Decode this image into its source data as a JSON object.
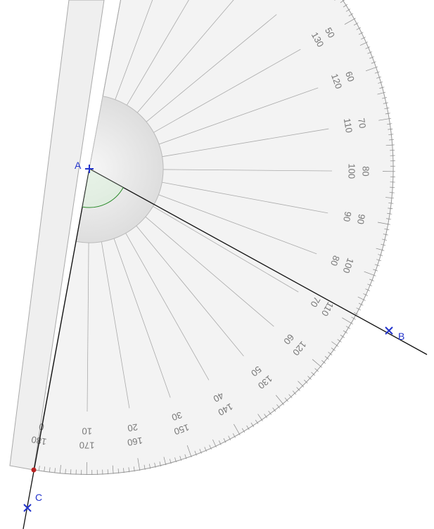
{
  "points": [
    {
      "label": "A"
    },
    {
      "label": "B"
    },
    {
      "label": "C"
    }
  ],
  "protractor": {
    "outer_labels": [
      "180",
      "170",
      "160",
      "150",
      "140",
      "130",
      "120",
      "110",
      "100",
      "90",
      "80",
      "70",
      "60",
      "50"
    ],
    "inner_labels": [
      "0",
      "10",
      "20",
      "30",
      "40",
      "50",
      "60",
      "70",
      "80",
      "90",
      "100",
      "110",
      "120",
      "130"
    ]
  }
}
